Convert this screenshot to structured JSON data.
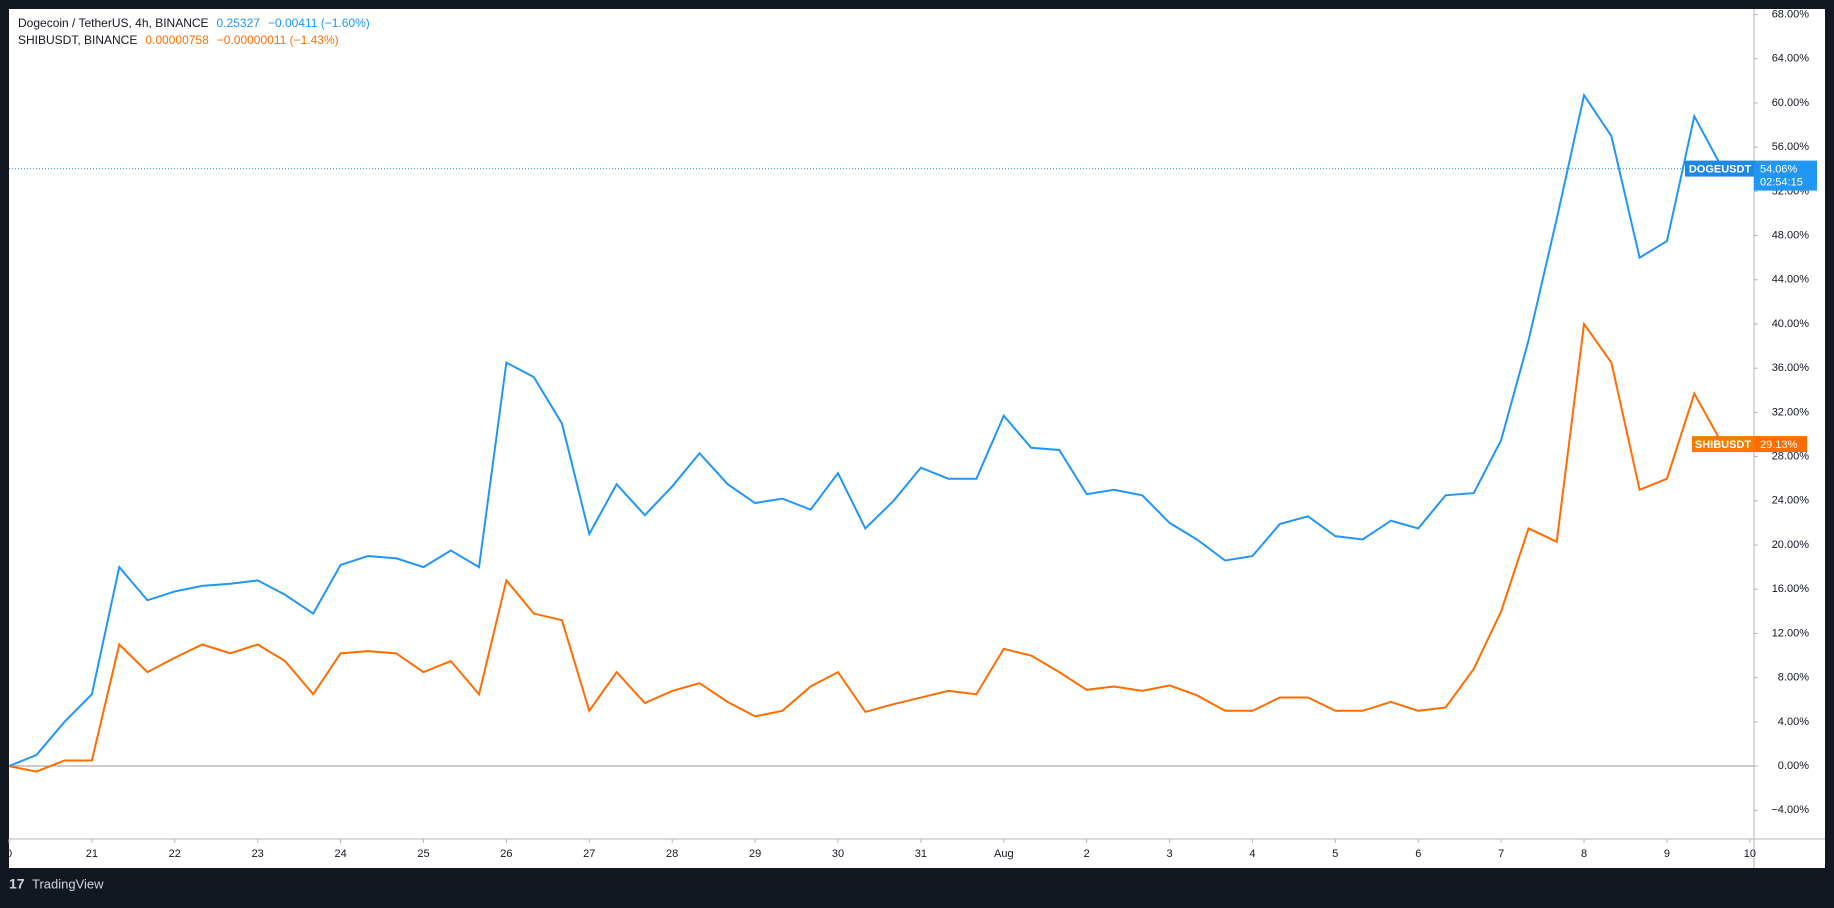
{
  "chart_data": {
    "type": "line",
    "legend": [
      {
        "name": "Dogecoin / TetherUS, 4h, BINANCE",
        "price": "0.25327",
        "change": "−0.00411 (−1.60%)"
      },
      {
        "name": "SHIBUSDT, BINANCE",
        "price": "0.00000758",
        "change": "−0.00000011 (−1.43%)"
      }
    ],
    "countdown": "02:54:15",
    "brand": "TradingView",
    "x": [
      0,
      0.33,
      0.67,
      1,
      1.33,
      1.67,
      2,
      2.33,
      2.67,
      3,
      3.33,
      3.67,
      4,
      4.33,
      4.67,
      5,
      5.33,
      5.67,
      6,
      6.33,
      6.67,
      7,
      7.33,
      7.67,
      8,
      8.33,
      8.67,
      9,
      9.33,
      9.67,
      10,
      10.33,
      10.67,
      11,
      11.33,
      11.67,
      12,
      12.33,
      12.67,
      13,
      13.33,
      13.67,
      14,
      14.33,
      14.67,
      15,
      15.33,
      15.67,
      16,
      16.33,
      16.67,
      17,
      17.33,
      17.67,
      18,
      18.33,
      18.67,
      19,
      19.33,
      19.67,
      20,
      20.33,
      20.67
    ],
    "series": [
      {
        "name": "DOGEUSDT",
        "color": "#2196f3",
        "tag_label": "54.06%",
        "values": [
          0,
          1,
          4,
          6.5,
          18,
          15,
          15.8,
          16.3,
          16.5,
          16.8,
          15.5,
          13.8,
          18.2,
          19,
          18.8,
          18,
          19.5,
          18,
          36.5,
          35.2,
          31,
          21,
          25.5,
          22.7,
          25.3,
          28.3,
          25.5,
          23.8,
          24.2,
          23.2,
          26.5,
          21.5,
          24,
          27,
          26,
          26,
          31.7,
          28.8,
          28.6,
          24.6,
          25,
          24.5,
          22,
          20.5,
          18.6,
          19,
          21.9,
          22.6,
          20.8,
          20.5,
          22.2,
          21.5,
          24.5,
          24.7,
          29.5,
          38.5,
          49.5,
          60.7,
          57,
          46,
          47.5,
          58.8,
          54.06
        ]
      },
      {
        "name": "SHIBUSDT",
        "color": "#ff6d00",
        "tag_label": "29.13%",
        "values": [
          0,
          -0.5,
          0.5,
          0.5,
          11,
          8.5,
          9.8,
          11,
          10.2,
          11,
          9.5,
          6.5,
          10.2,
          10.4,
          10.2,
          8.5,
          9.5,
          6.5,
          16.8,
          13.8,
          13.2,
          5,
          8.5,
          5.7,
          6.8,
          7.5,
          5.8,
          4.5,
          5,
          7.2,
          8.5,
          4.9,
          5.6,
          6.2,
          6.8,
          6.5,
          10.6,
          10,
          8.5,
          6.9,
          7.2,
          6.8,
          7.3,
          6.4,
          5,
          5,
          6.2,
          6.2,
          5,
          5,
          5.8,
          5,
          5.3,
          8.8,
          14,
          21.5,
          20.3,
          40,
          36.5,
          25,
          26,
          33.7,
          29.13
        ]
      }
    ],
    "xlim": [
      0,
      21.05
    ],
    "xticks": [
      {
        "value": 0,
        "label": "0"
      },
      {
        "value": 1,
        "label": "21"
      },
      {
        "value": 2,
        "label": "22"
      },
      {
        "value": 3,
        "label": "23"
      },
      {
        "value": 4,
        "label": "24"
      },
      {
        "value": 5,
        "label": "25"
      },
      {
        "value": 6,
        "label": "26"
      },
      {
        "value": 7,
        "label": "27"
      },
      {
        "value": 8,
        "label": "28"
      },
      {
        "value": 9,
        "label": "29"
      },
      {
        "value": 10,
        "label": "30"
      },
      {
        "value": 11,
        "label": "31"
      },
      {
        "value": 12,
        "label": "Aug"
      },
      {
        "value": 13,
        "label": "2"
      },
      {
        "value": 14,
        "label": "3"
      },
      {
        "value": 15,
        "label": "4"
      },
      {
        "value": 16,
        "label": "5"
      },
      {
        "value": 17,
        "label": "6"
      },
      {
        "value": 18,
        "label": "7"
      },
      {
        "value": 19,
        "label": "8"
      },
      {
        "value": 20,
        "label": "9"
      },
      {
        "value": 21,
        "label": "10"
      }
    ],
    "ylim": [
      -6.6,
      68.5
    ],
    "yticks": [
      {
        "value": -4,
        "label": "−4.00%"
      },
      {
        "value": 0,
        "label": "0.00%"
      },
      {
        "value": 4,
        "label": "4.00%"
      },
      {
        "value": 8,
        "label": "8.00%"
      },
      {
        "value": 12,
        "label": "12.00%"
      },
      {
        "value": 16,
        "label": "16.00%"
      },
      {
        "value": 20,
        "label": "20.00%"
      },
      {
        "value": 24,
        "label": "24.00%"
      },
      {
        "value": 28,
        "label": "28.00%"
      },
      {
        "value": 32,
        "label": "32.00%"
      },
      {
        "value": 36,
        "label": "36.00%"
      },
      {
        "value": 40,
        "label": "40.00%"
      },
      {
        "value": 44,
        "label": "44.00%"
      },
      {
        "value": 48,
        "label": "48.00%"
      },
      {
        "value": 52,
        "label": "52.00%"
      },
      {
        "value": 56,
        "label": "56.00%"
      },
      {
        "value": 60,
        "label": "60.00%"
      },
      {
        "value": 64,
        "label": "64.00%"
      },
      {
        "value": 68,
        "label": "68.00%"
      }
    ],
    "grid": false
  }
}
